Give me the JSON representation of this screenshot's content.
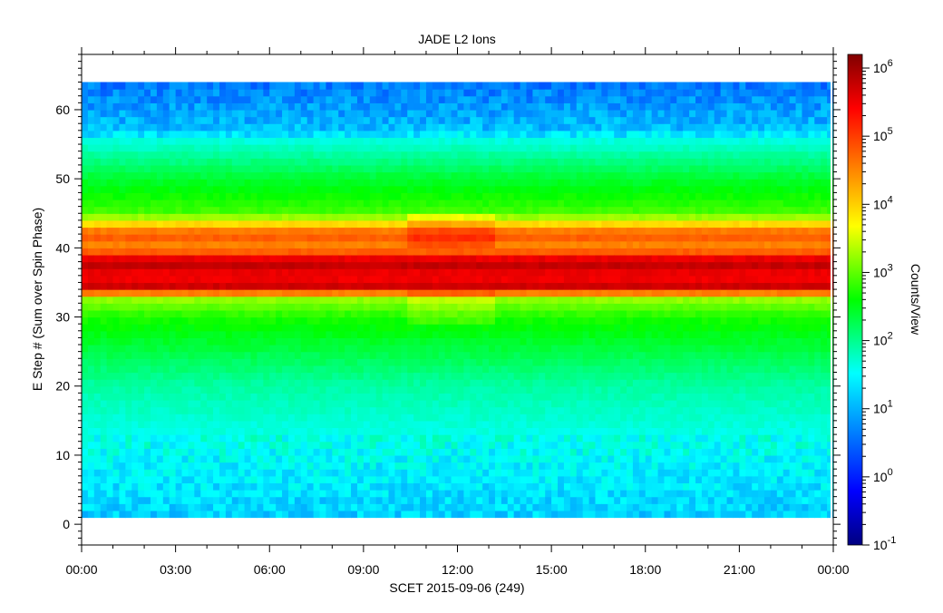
{
  "chart_data": {
    "type": "heatmap",
    "title": "JADE L2 Ions",
    "xlabel": "SCET 2015-09-06 (249)",
    "ylabel": "E Step # (Sum over Spin Phase)",
    "colorbar_label": "Counts/View",
    "x_tick_labels": [
      "00:00",
      "03:00",
      "06:00",
      "09:00",
      "12:00",
      "15:00",
      "18:00",
      "21:00",
      "00:00"
    ],
    "x_range_hours": [
      0,
      24
    ],
    "y_ticks": [
      0,
      10,
      20,
      30,
      40,
      50,
      60
    ],
    "y_range": [
      -3,
      68
    ],
    "data_y_range": [
      1,
      64
    ],
    "colorbar_log_range": [
      -1,
      6.2
    ],
    "colorbar_ticks": [
      {
        "base": "10",
        "exp": "-1",
        "log": -1
      },
      {
        "base": "10",
        "exp": "0",
        "log": 0
      },
      {
        "base": "10",
        "exp": "1",
        "log": 1
      },
      {
        "base": "10",
        "exp": "2",
        "log": 2
      },
      {
        "base": "10",
        "exp": "3",
        "log": 3
      },
      {
        "base": "10",
        "exp": "4",
        "log": 4
      },
      {
        "base": "10",
        "exp": "5",
        "log": 5
      },
      {
        "base": "10",
        "exp": "6",
        "log": 6
      }
    ],
    "energy_profile_log10_counts": [
      {
        "e_step": 1,
        "log10_counts": 1.2
      },
      {
        "e_step": 10,
        "log10_counts": 1.5
      },
      {
        "e_step": 20,
        "log10_counts": 1.9
      },
      {
        "e_step": 30,
        "log10_counts": 2.7
      },
      {
        "e_step": 33,
        "log10_counts": 3.3
      },
      {
        "e_step": 34,
        "log10_counts": 5.8
      },
      {
        "e_step": 36,
        "log10_counts": 5.4
      },
      {
        "e_step": 38,
        "log10_counts": 5.9
      },
      {
        "e_step": 40,
        "log10_counts": 4.4
      },
      {
        "e_step": 42,
        "log10_counts": 4.9
      },
      {
        "e_step": 44,
        "log10_counts": 3.6
      },
      {
        "e_step": 45,
        "log10_counts": 2.9
      },
      {
        "e_step": 50,
        "log10_counts": 2.4
      },
      {
        "e_step": 56,
        "log10_counts": 1.6
      },
      {
        "e_step": 57,
        "log10_counts": 1.1
      },
      {
        "e_step": 64,
        "log10_counts": 0.6
      }
    ],
    "time_enhancement_hours": [
      10.5,
      13.2
    ]
  }
}
